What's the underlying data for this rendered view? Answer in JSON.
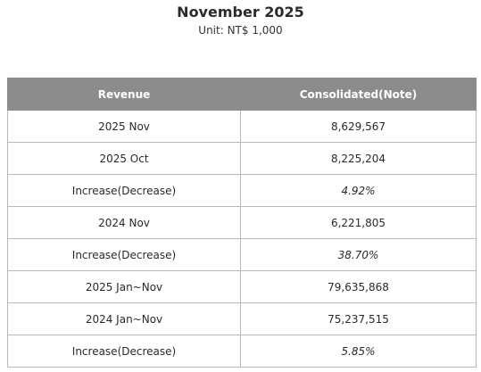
{
  "title": "November 2025",
  "subtitle": "Unit: NT$ 1,000",
  "table": {
    "headers": [
      "Revenue",
      "Consolidated(Note)"
    ],
    "rows": [
      {
        "label": "2025 Nov",
        "value": "8,629,567",
        "kind": "num"
      },
      {
        "label": "2025 Oct",
        "value": "8,225,204",
        "kind": "num"
      },
      {
        "label": "Increase(Decrease)",
        "value": "4.92%",
        "kind": "pct"
      },
      {
        "label": "2024 Nov",
        "value": "6,221,805",
        "kind": "num"
      },
      {
        "label": "Increase(Decrease)",
        "value": "38.70%",
        "kind": "pct"
      },
      {
        "label": "2025 Jan~Nov",
        "value": "79,635,868",
        "kind": "num"
      },
      {
        "label": "2024 Jan~Nov",
        "value": "75,237,515",
        "kind": "num"
      },
      {
        "label": "Increase(Decrease)",
        "value": "5.85%",
        "kind": "pct"
      }
    ]
  }
}
